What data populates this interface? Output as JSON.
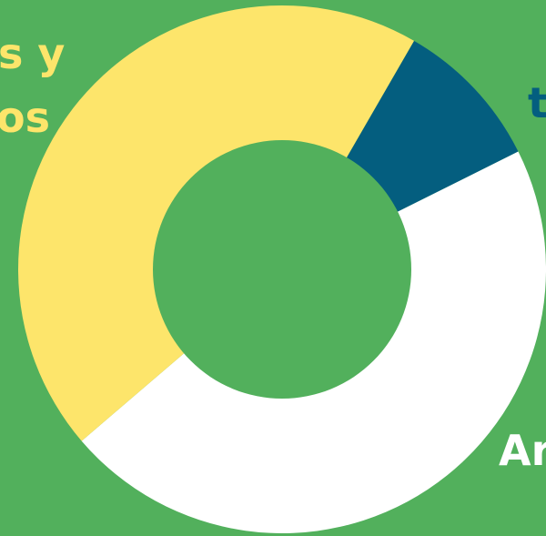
{
  "colors": {
    "background": "#52b05c",
    "hole": "#52b05c"
  },
  "chart_data": {
    "type": "pie",
    "donut": true,
    "title": "",
    "slices": [
      {
        "label_partial": "t",
        "value": 9.3,
        "color": "#045e7f"
      },
      {
        "label_partial": "Ar",
        "value": 46.1,
        "color": "#ffffff"
      },
      {
        "label_partial": "s y / os",
        "value": 44.6,
        "color": "#fde56b"
      }
    ],
    "start_angle_deg": 30,
    "direction": "clockwise",
    "legend": "none"
  },
  "labels": {
    "yellow_line1": "s y",
    "yellow_line2": "os",
    "blue": "t",
    "white": "Ar"
  }
}
